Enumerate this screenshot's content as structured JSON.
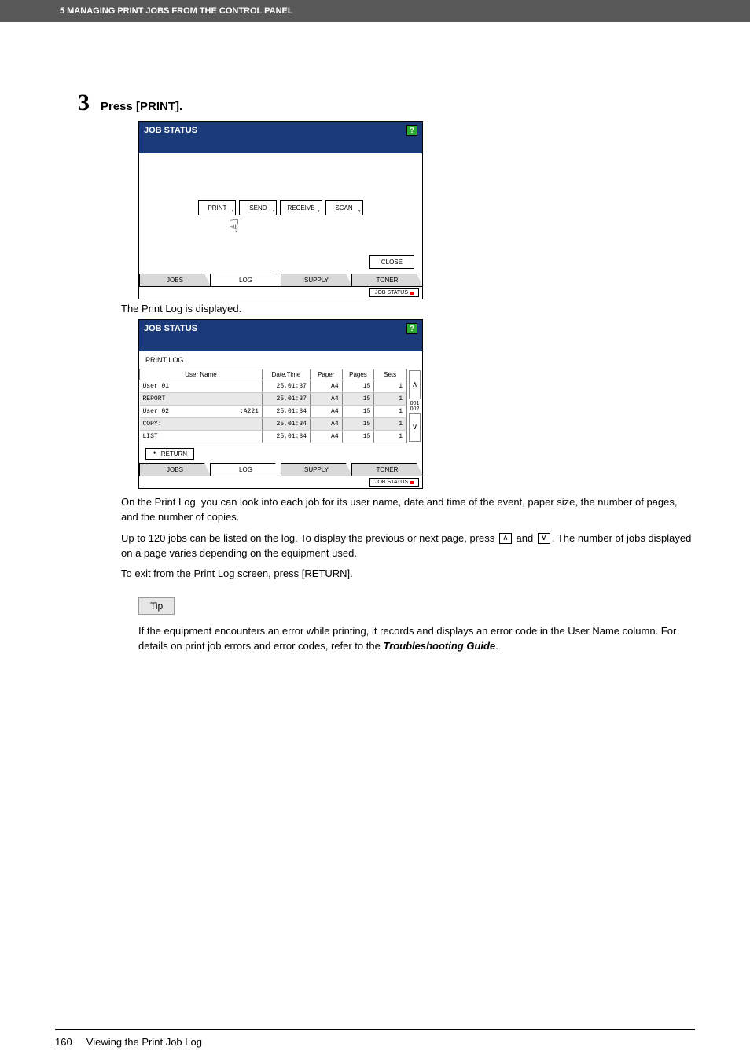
{
  "header": "5 MANAGING PRINT JOBS FROM THE CONTROL PANEL",
  "step": {
    "number": "3",
    "title": "Press [PRINT]."
  },
  "panel": {
    "title": "JOB STATUS",
    "help": "?",
    "buttons": {
      "print": "PRINT",
      "send": "SEND",
      "receive": "RECEIVE",
      "scan": "SCAN"
    },
    "close": "CLOSE",
    "tabs": {
      "jobs": "JOBS",
      "log": "LOG",
      "supply": "SUPPLY",
      "toner": "TONER"
    },
    "chip": "JOB STATUS"
  },
  "caption1": "The Print Log is displayed.",
  "printlog": {
    "title": "JOB STATUS",
    "subtitle": "PRINT LOG",
    "headers": {
      "username": "User Name",
      "datetime": "Date,Time",
      "paper": "Paper",
      "pages": "Pages",
      "sets": "Sets"
    },
    "rows": [
      {
        "name": "User 01",
        "code": "",
        "dt": "25,01:37",
        "paper": "A4",
        "pages": "15",
        "sets": "1",
        "shade": false
      },
      {
        "name": "REPORT",
        "code": "",
        "dt": "25,01:37",
        "paper": "A4",
        "pages": "15",
        "sets": "1",
        "shade": true
      },
      {
        "name": "User 02",
        "code": ":A221",
        "dt": "25,01:34",
        "paper": "A4",
        "pages": "15",
        "sets": "1",
        "shade": false
      },
      {
        "name": "COPY:",
        "code": "",
        "dt": "25,01:34",
        "paper": "A4",
        "pages": "15",
        "sets": "1",
        "shade": true
      },
      {
        "name": "LIST",
        "code": "",
        "dt": "25,01:34",
        "paper": "A4",
        "pages": "15",
        "sets": "1",
        "shade": false
      }
    ],
    "scroll": {
      "num1": "001",
      "num2": "002"
    },
    "return": "RETURN"
  },
  "para1": "On the Print Log, you can look into each job for its user name, date and time of the event, paper size, the number of pages, and the number of copies.",
  "para2a": "Up to 120 jobs can be listed on the log. To display the previous or next page, press ",
  "para2b": " and ",
  "para2c": ". The number of jobs displayed on a page varies depending on the equipment used.",
  "para3": "To exit from the Print Log screen, press [RETURN].",
  "tip_label": "Tip",
  "tip_text1": "If the equipment encounters an error while printing, it records and displays an error code in the User Name column. For details on print job errors and error codes, refer to the ",
  "tip_ref": "Troubleshooting Guide",
  "footer": {
    "page": "160",
    "title": "Viewing the Print Job Log"
  }
}
